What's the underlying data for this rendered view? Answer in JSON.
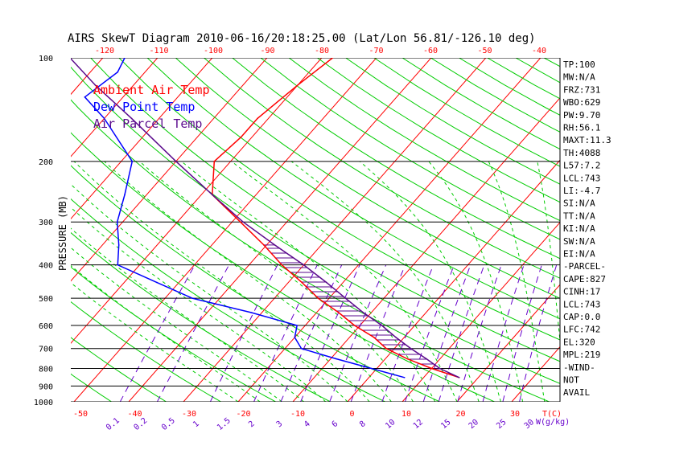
{
  "chart_data": {
    "type": "line",
    "title": "AIRS SkewT Diagram 2010-06-16/20:18:25.00 (Lat/Lon 56.81/-126.10 deg)",
    "ylabel": "PRESSURE (MB)",
    "xlabel": "T(C)",
    "mixing_ratio_label": "W(g/kg)",
    "pressure_ticks": [
      "100",
      "200",
      "300",
      "400",
      "500",
      "600",
      "700",
      "800",
      "900",
      "1000"
    ],
    "pressure_levels": [
      100,
      200,
      300,
      400,
      500,
      600,
      700,
      800,
      900,
      1000
    ],
    "top_temp_ticks": [
      "-120",
      "-110",
      "-100",
      "-90",
      "-80",
      "-70",
      "-60",
      "-50",
      "-40"
    ],
    "bottom_temp_ticks": [
      "-50",
      "-40",
      "-30",
      "-20",
      "-10",
      "0",
      "10",
      "20",
      "30"
    ],
    "mixing_ratio_ticks": [
      "0.1",
      "0.2",
      "0.5",
      "1",
      "1.5",
      "2",
      "3",
      "4",
      "6",
      "8",
      "10",
      "12",
      "15",
      "20",
      "25",
      "30"
    ],
    "legend": [
      "Ambient Air Temp",
      "Dew Point Temp",
      "Air Parcel Temp"
    ],
    "colors": {
      "ambient": "#ff0000",
      "dew": "#0000ff",
      "parcel": "#5a0a8c",
      "isotherm": "#ff0000",
      "dry_adiabat": "#00cc00",
      "moist_adiabat": "#00cc00",
      "mixing_ratio": "#6600cc",
      "grid": "#000000"
    },
    "series": [
      {
        "name": "Ambient Air Temp",
        "points": [
          [
            850,
            16.5
          ],
          [
            800,
            10
          ],
          [
            750,
            4
          ],
          [
            700,
            -1.5
          ],
          [
            650,
            -5.5
          ],
          [
            600,
            -11
          ],
          [
            550,
            -16
          ],
          [
            500,
            -22
          ],
          [
            450,
            -27.5
          ],
          [
            400,
            -34
          ],
          [
            350,
            -40.5
          ],
          [
            300,
            -48.5
          ],
          [
            270,
            -54
          ],
          [
            250,
            -58
          ],
          [
            200,
            -63
          ],
          [
            170,
            -62
          ],
          [
            150,
            -62
          ],
          [
            120,
            -60
          ],
          [
            100,
            -58
          ]
        ]
      },
      {
        "name": "Dew Point Temp",
        "points": [
          [
            850,
            6.5
          ],
          [
            800,
            -1
          ],
          [
            750,
            -9
          ],
          [
            700,
            -17
          ],
          [
            650,
            -20
          ],
          [
            600,
            -21.5
          ],
          [
            550,
            -32
          ],
          [
            500,
            -45
          ],
          [
            450,
            -54
          ],
          [
            400,
            -64
          ],
          [
            350,
            -67
          ],
          [
            300,
            -71
          ],
          [
            250,
            -74
          ],
          [
            200,
            -78
          ],
          [
            150,
            -90
          ],
          [
            130,
            -97
          ],
          [
            110,
            -95
          ],
          [
            100,
            -96
          ]
        ]
      },
      {
        "name": "Air Parcel Temp",
        "points": [
          [
            850,
            16.5
          ],
          [
            800,
            11.5
          ],
          [
            750,
            7.5
          ],
          [
            700,
            3
          ],
          [
            650,
            -1.5
          ],
          [
            600,
            -6
          ],
          [
            550,
            -11.5
          ],
          [
            500,
            -17
          ],
          [
            450,
            -23
          ],
          [
            400,
            -30
          ],
          [
            350,
            -38.5
          ],
          [
            300,
            -48
          ],
          [
            250,
            -58
          ],
          [
            200,
            -70
          ],
          [
            150,
            -85
          ],
          [
            120,
            -97
          ],
          [
            100,
            -106
          ]
        ]
      }
    ]
  },
  "indices": [
    "TP:100",
    "MW:N/A",
    "FRZ:731",
    "WBO:629",
    "PW:9.70",
    "RH:56.1",
    "MAXT:11.3",
    "TH:4088",
    "L57:7.2",
    "LCL:743",
    "LI:-4.7",
    "SI:N/A",
    "TT:N/A",
    "KI:N/A",
    "SW:N/A",
    "EI:N/A",
    "-PARCEL-",
    "CAPE:827",
    "CINH:17",
    "LCL:743",
    "CAP:0.0",
    "LFC:742",
    "EL:320",
    "MPL:219",
    "-WIND-",
    "NOT",
    "AVAIL"
  ]
}
